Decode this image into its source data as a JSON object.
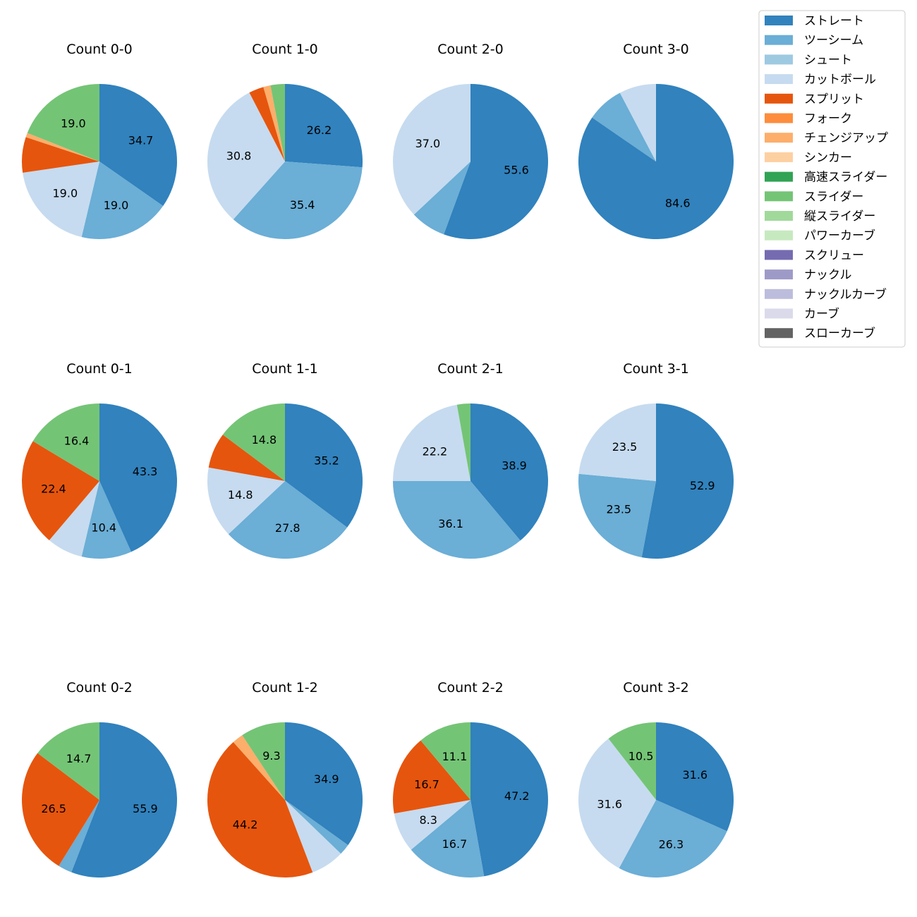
{
  "legend": {
    "placement": "top-right",
    "entries": [
      {
        "name": "ストレート",
        "color": "#3182bd"
      },
      {
        "name": "ツーシーム",
        "color": "#6baed6"
      },
      {
        "name": "シュート",
        "color": "#9ecae1"
      },
      {
        "name": "カットボール",
        "color": "#c6dbef"
      },
      {
        "name": "スプリット",
        "color": "#e6550d"
      },
      {
        "name": "フォーク",
        "color": "#fd8d3c"
      },
      {
        "name": "チェンジアップ",
        "color": "#fdae6b"
      },
      {
        "name": "シンカー",
        "color": "#fdd0a2"
      },
      {
        "name": "高速スライダー",
        "color": "#31a354"
      },
      {
        "name": "スライダー",
        "color": "#74c476"
      },
      {
        "name": "縦スライダー",
        "color": "#a1d99b"
      },
      {
        "name": "パワーカーブ",
        "color": "#c7e9c0"
      },
      {
        "name": "スクリュー",
        "color": "#756bb1"
      },
      {
        "name": "ナックル",
        "color": "#9e9ac8"
      },
      {
        "name": "ナックルカーブ",
        "color": "#bcbddc"
      },
      {
        "name": "カーブ",
        "color": "#dadaeb"
      },
      {
        "name": "スローカーブ",
        "color": "#636363"
      }
    ]
  },
  "chart_data": [
    {
      "type": "pie",
      "title": "Count 0-0",
      "slices": [
        {
          "name": "ストレート",
          "value": 34.7,
          "label": "34.7"
        },
        {
          "name": "ツーシーム",
          "value": 19.0,
          "label": "19.0"
        },
        {
          "name": "カットボール",
          "value": 19.0,
          "label": "19.0"
        },
        {
          "name": "スプリット",
          "value": 7.4
        },
        {
          "name": "チェンジアップ",
          "value": 0.9
        },
        {
          "name": "スライダー",
          "value": 19.0,
          "label": "19.0"
        }
      ]
    },
    {
      "type": "pie",
      "title": "Count 1-0",
      "slices": [
        {
          "name": "ストレート",
          "value": 26.2,
          "label": "26.2"
        },
        {
          "name": "ツーシーム",
          "value": 35.4,
          "label": "35.4"
        },
        {
          "name": "カットボール",
          "value": 30.8,
          "label": "30.8"
        },
        {
          "name": "スプリット",
          "value": 3.1
        },
        {
          "name": "チェンジアップ",
          "value": 1.5
        },
        {
          "name": "スライダー",
          "value": 3.0
        }
      ]
    },
    {
      "type": "pie",
      "title": "Count 2-0",
      "slices": [
        {
          "name": "ストレート",
          "value": 55.6,
          "label": "55.6"
        },
        {
          "name": "ツーシーム",
          "value": 7.4
        },
        {
          "name": "カットボール",
          "value": 37.0,
          "label": "37.0"
        }
      ]
    },
    {
      "type": "pie",
      "title": "Count 3-0",
      "slices": [
        {
          "name": "ストレート",
          "value": 84.6,
          "label": "84.6"
        },
        {
          "name": "ツーシーム",
          "value": 7.7
        },
        {
          "name": "カットボール",
          "value": 7.7
        }
      ]
    },
    {
      "type": "pie",
      "title": "Count 0-1",
      "slices": [
        {
          "name": "ストレート",
          "value": 43.3,
          "label": "43.3"
        },
        {
          "name": "ツーシーム",
          "value": 10.4,
          "label": "10.4"
        },
        {
          "name": "カットボール",
          "value": 7.5
        },
        {
          "name": "スプリット",
          "value": 22.4,
          "label": "22.4"
        },
        {
          "name": "スライダー",
          "value": 16.4,
          "label": "16.4"
        }
      ]
    },
    {
      "type": "pie",
      "title": "Count 1-1",
      "slices": [
        {
          "name": "ストレート",
          "value": 35.2,
          "label": "35.2"
        },
        {
          "name": "ツーシーム",
          "value": 27.8,
          "label": "27.8"
        },
        {
          "name": "カットボール",
          "value": 14.8,
          "label": "14.8"
        },
        {
          "name": "スプリット",
          "value": 7.4
        },
        {
          "name": "スライダー",
          "value": 14.8,
          "label": "14.8"
        }
      ]
    },
    {
      "type": "pie",
      "title": "Count 2-1",
      "slices": [
        {
          "name": "ストレート",
          "value": 38.9,
          "label": "38.9"
        },
        {
          "name": "ツーシーム",
          "value": 36.1,
          "label": "36.1"
        },
        {
          "name": "カットボール",
          "value": 22.2,
          "label": "22.2"
        },
        {
          "name": "スライダー",
          "value": 2.8
        }
      ]
    },
    {
      "type": "pie",
      "title": "Count 3-1",
      "slices": [
        {
          "name": "ストレート",
          "value": 52.9,
          "label": "52.9"
        },
        {
          "name": "ツーシーム",
          "value": 23.5,
          "label": "23.5"
        },
        {
          "name": "カットボール",
          "value": 23.5,
          "label": "23.5"
        }
      ]
    },
    {
      "type": "pie",
      "title": "Count 0-2",
      "slices": [
        {
          "name": "ストレート",
          "value": 55.9,
          "label": "55.9"
        },
        {
          "name": "ツーシーム",
          "value": 2.9
        },
        {
          "name": "スプリット",
          "value": 26.5,
          "label": "26.5"
        },
        {
          "name": "スライダー",
          "value": 14.7,
          "label": "14.7"
        }
      ]
    },
    {
      "type": "pie",
      "title": "Count 1-2",
      "slices": [
        {
          "name": "ストレート",
          "value": 34.9,
          "label": "34.9"
        },
        {
          "name": "ツーシーム",
          "value": 2.3
        },
        {
          "name": "カットボール",
          "value": 7.0
        },
        {
          "name": "スプリット",
          "value": 44.2,
          "label": "44.2"
        },
        {
          "name": "チェンジアップ",
          "value": 2.3
        },
        {
          "name": "スライダー",
          "value": 9.3,
          "label": "9.3"
        }
      ]
    },
    {
      "type": "pie",
      "title": "Count 2-2",
      "slices": [
        {
          "name": "ストレート",
          "value": 47.2,
          "label": "47.2"
        },
        {
          "name": "ツーシーム",
          "value": 16.7,
          "label": "16.7"
        },
        {
          "name": "カットボール",
          "value": 8.3,
          "label": "8.3"
        },
        {
          "name": "スプリット",
          "value": 16.7,
          "label": "16.7"
        },
        {
          "name": "スライダー",
          "value": 11.1,
          "label": "11.1"
        }
      ]
    },
    {
      "type": "pie",
      "title": "Count 3-2",
      "slices": [
        {
          "name": "ストレート",
          "value": 31.6,
          "label": "31.6"
        },
        {
          "name": "ツーシーム",
          "value": 26.3,
          "label": "26.3"
        },
        {
          "name": "カットボール",
          "value": 31.6,
          "label": "31.6"
        },
        {
          "name": "スライダー",
          "value": 10.5,
          "label": "10.5"
        }
      ]
    }
  ]
}
